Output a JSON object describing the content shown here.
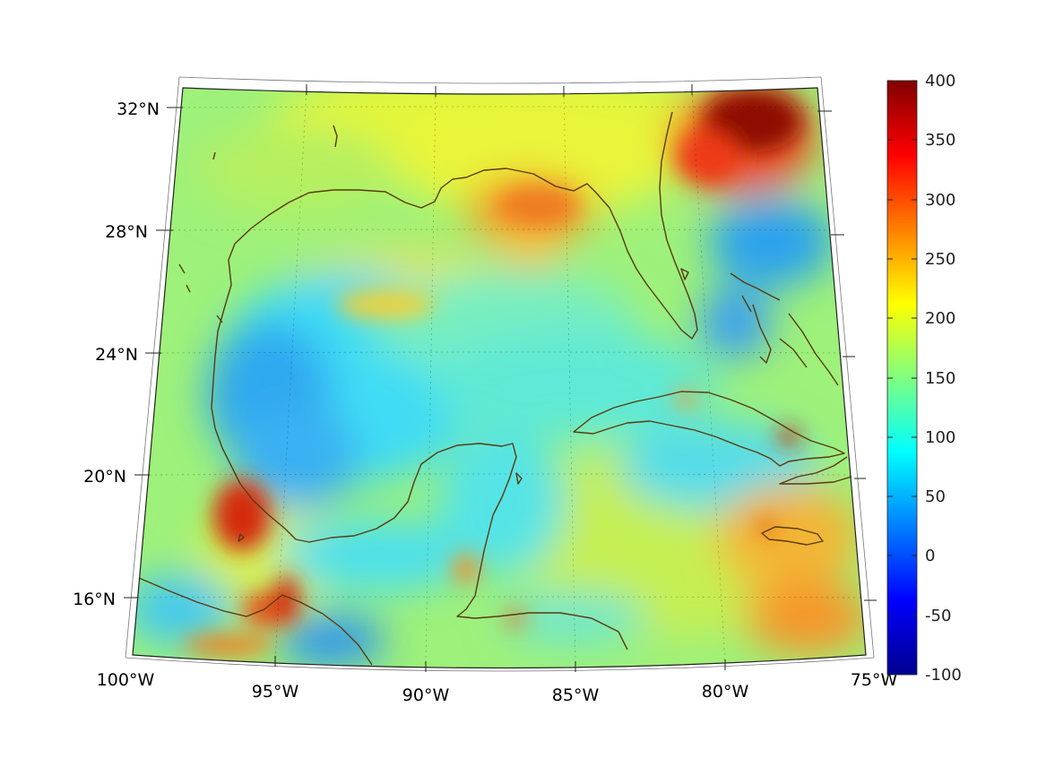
{
  "map": {
    "projection": "conic",
    "lon_range": [
      -100,
      -75
    ],
    "lat_range": [
      14,
      33
    ],
    "lon_ticks": [
      "100°W",
      "95°W",
      "90°W",
      "85°W",
      "80°W",
      "75°W"
    ],
    "lat_ticks": [
      "32°N",
      "28°N",
      "24°N",
      "20°N",
      "16°N"
    ],
    "field_hot_spots": [
      "NE Florida/Atlantic",
      "Mississippi delta",
      "Bay of Campeche",
      "Gulf of Tehuantepec",
      "SE Caribbean"
    ],
    "field_cool_regions": [
      "western Gulf of Mexico",
      "Bahamas",
      "Pacific off Guatemala"
    ],
    "coastline_color": "#5a3a0e"
  },
  "colorbar": {
    "colormap": "jet",
    "min": -100,
    "max": 400,
    "ticks": [
      "400",
      "350",
      "300",
      "250",
      "200",
      "150",
      "100",
      "50",
      "0",
      "-50",
      "-100"
    ]
  }
}
